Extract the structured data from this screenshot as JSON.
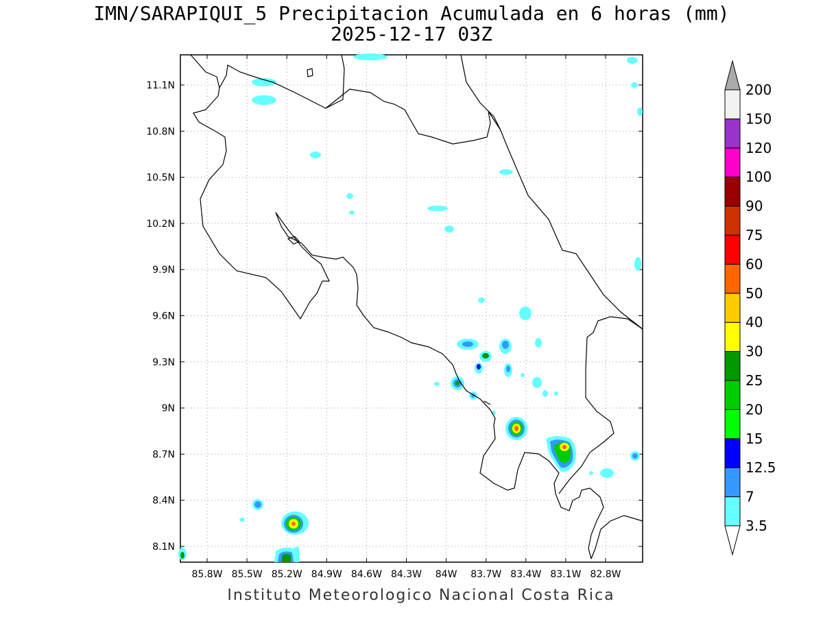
{
  "title": "IMN/SARAPIQUI_5 Precipitacion Acumulada en 6 horas (mm)",
  "subtitle": "2025-12-17 03Z",
  "footer": "Instituto Meteorologico Nacional Costa Rica",
  "lat_labels": [
    "11.1N",
    "10.8N",
    "10.5N",
    "10.2N",
    "9.9N",
    "9.6N",
    "9.3N",
    "9N",
    "8.7N",
    "8.4N",
    "8.1N"
  ],
  "lon_labels": [
    "85.8W",
    "85.5W",
    "85.2W",
    "84.9W",
    "84.6W",
    "84.3W",
    "84W",
    "83.7W",
    "83.4W",
    "83.1W",
    "82.8W"
  ],
  "colorbar": {
    "levels": [
      "3.5",
      "7",
      "12.5",
      "15",
      "20",
      "25",
      "30",
      "40",
      "50",
      "60",
      "75",
      "90",
      "100",
      "120",
      "150",
      "200"
    ],
    "colors": [
      "#66ffff",
      "#3399ff",
      "#0000ff",
      "#00ff00",
      "#00cc00",
      "#009900",
      "#ffff00",
      "#ffcc00",
      "#ff6600",
      "#ff0000",
      "#cc3300",
      "#990000",
      "#ff00cc",
      "#9933cc",
      "#f2f2f2",
      "#aaaaaa"
    ]
  }
}
